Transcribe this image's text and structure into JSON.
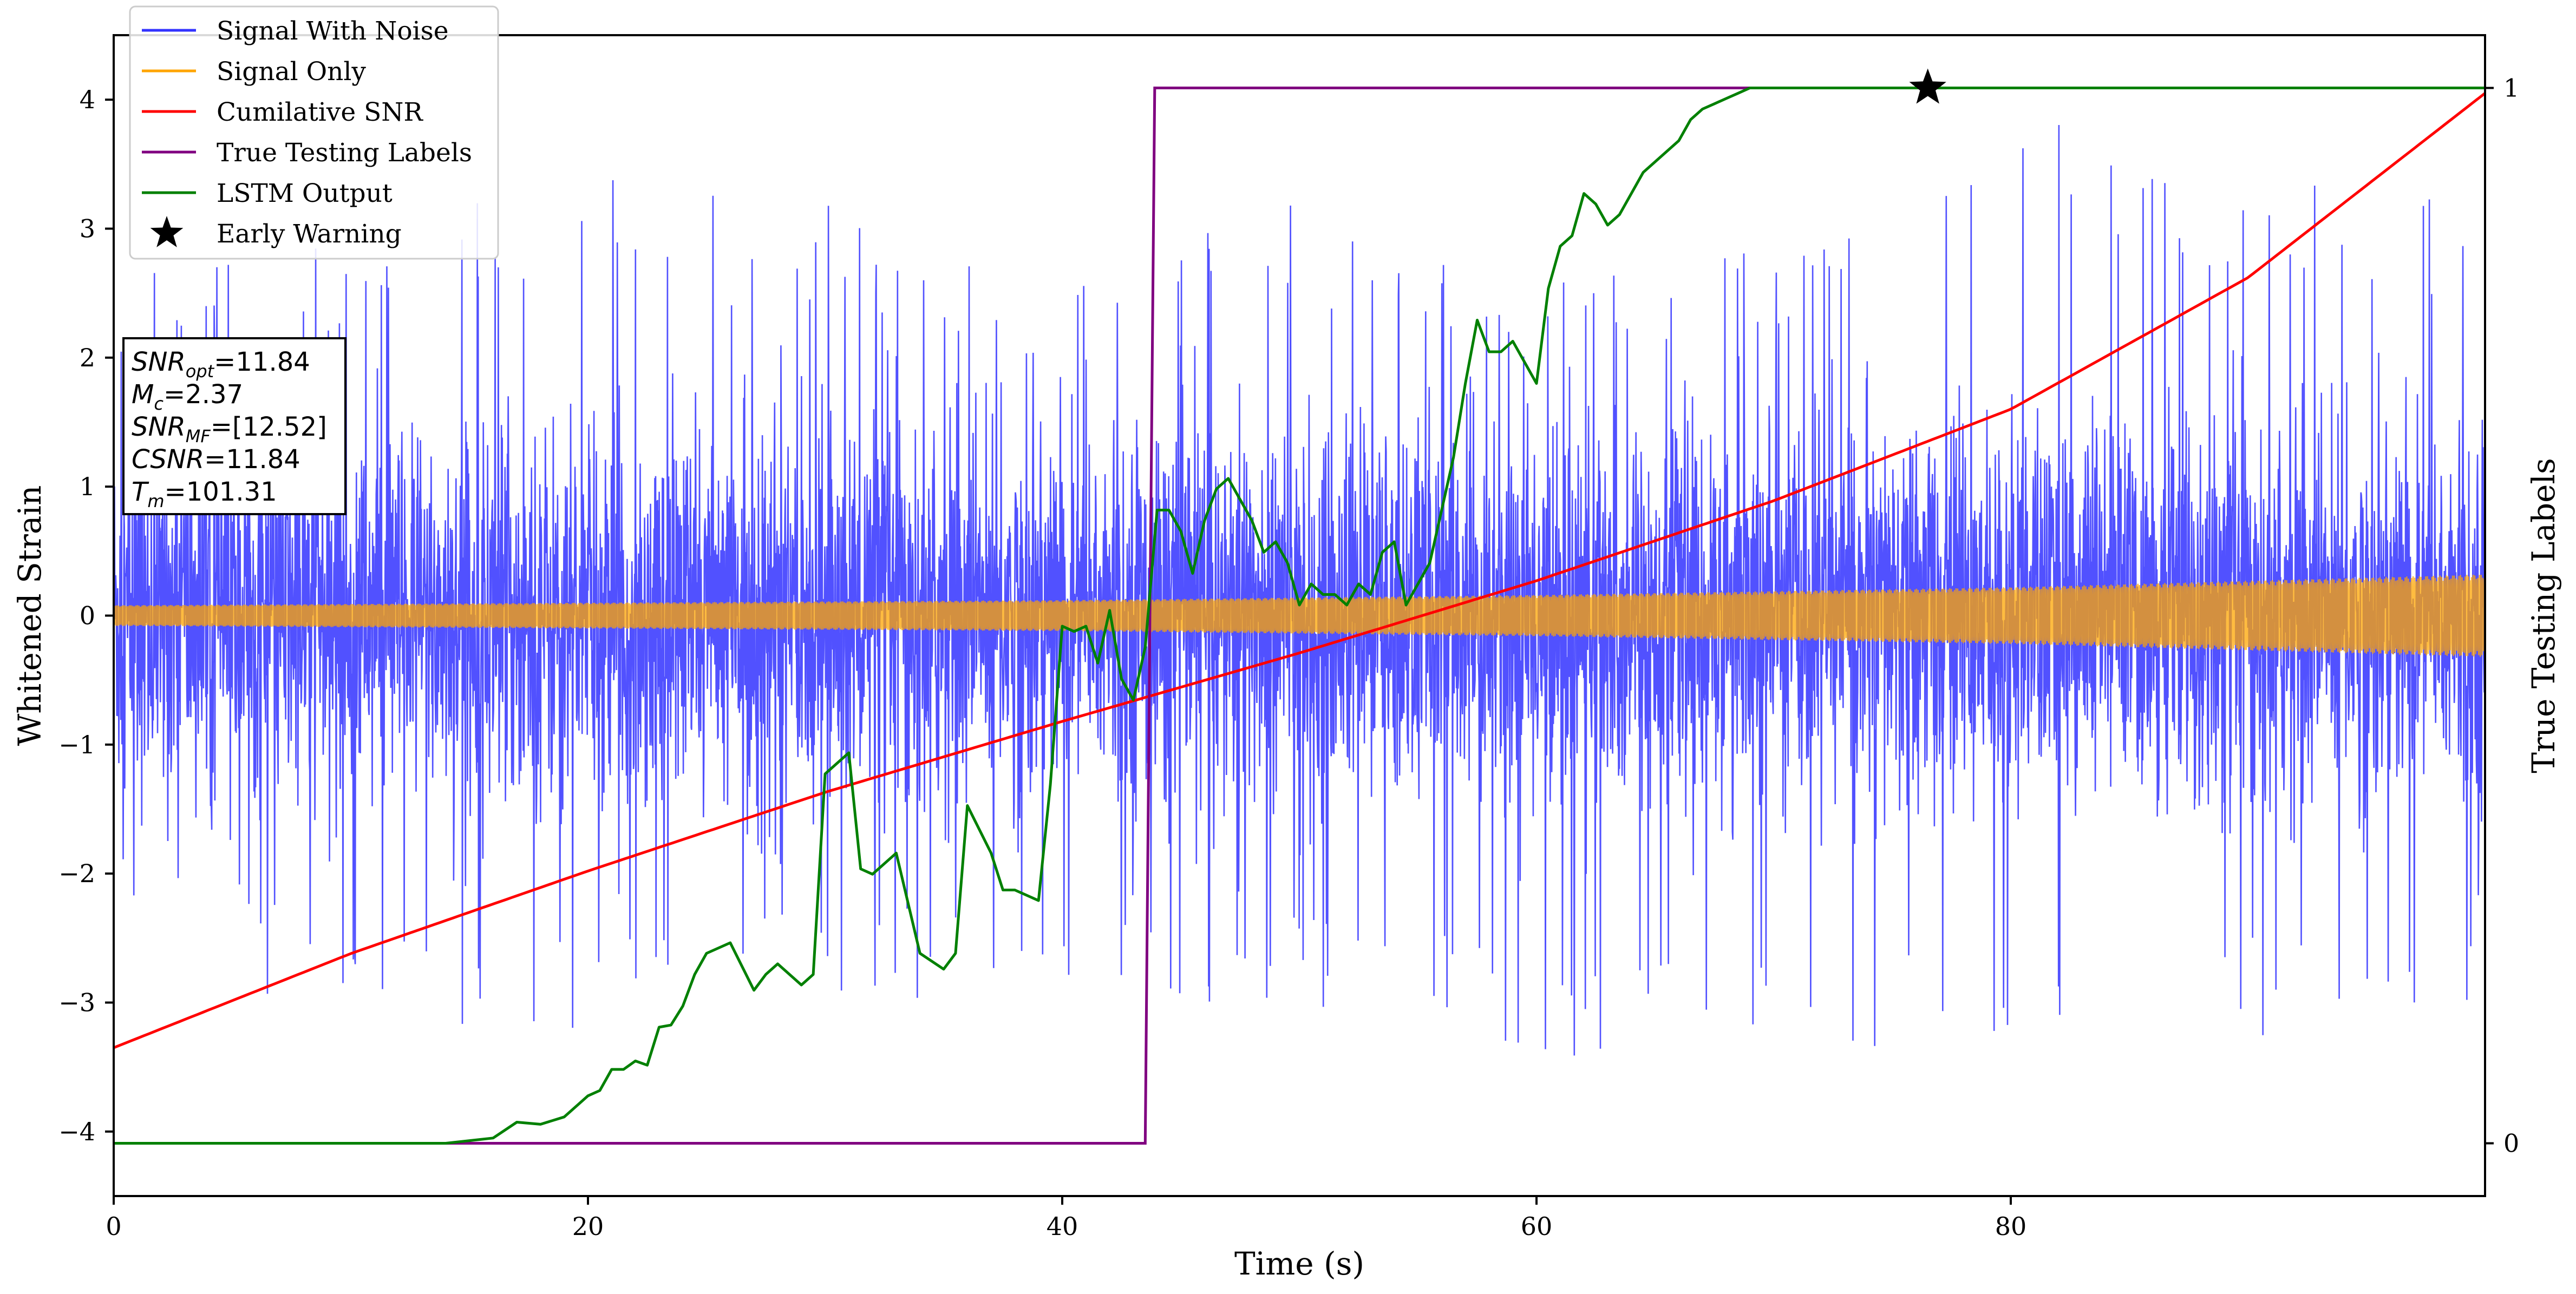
{
  "chart_data": {
    "type": "line",
    "xlabel": "Time (s)",
    "ylabel": "Whitened Strain",
    "y2label": "True Testing Labels",
    "xlim": [
      0,
      100
    ],
    "ylim": [
      -4.5,
      4.5
    ],
    "y2lim": [
      -0.05,
      1.05
    ],
    "xticks": [
      0,
      20,
      40,
      60,
      80
    ],
    "yticks": [
      -4,
      -3,
      -2,
      -1,
      0,
      1,
      2,
      3,
      4
    ],
    "y2ticks": [
      0,
      1
    ],
    "legend_location": "upper-left",
    "series": [
      {
        "name": "Signal With Noise",
        "color": "#3333ff",
        "axis": "left",
        "style": "dense-noise",
        "envelope_x": [
          0,
          10,
          20,
          30,
          40,
          50,
          60,
          70,
          80,
          90,
          100
        ],
        "envelope_max": [
          2.6,
          3.0,
          3.4,
          3.2,
          2.5,
          3.5,
          2.7,
          3.0,
          4.0,
          3.5,
          3.2
        ],
        "envelope_min": [
          -2.5,
          -3.2,
          -3.2,
          -3.0,
          -3.0,
          -3.0,
          -3.5,
          -3.3,
          -3.4,
          -3.3,
          -3.2
        ]
      },
      {
        "name": "Signal Only",
        "color": "#ffa500",
        "axis": "left",
        "style": "growing-oscillation",
        "amplitude_x": [
          0,
          20,
          40,
          60,
          80,
          100
        ],
        "amplitude": [
          0.08,
          0.1,
          0.12,
          0.16,
          0.22,
          0.32
        ]
      },
      {
        "name": "Cumilative SNR",
        "color": "#ff0000",
        "axis": "left",
        "x": [
          0,
          10,
          20,
          30,
          40,
          50,
          60,
          70,
          80,
          90,
          100
        ],
        "y": [
          -3.35,
          -2.62,
          -1.98,
          -1.37,
          -0.82,
          -0.29,
          0.27,
          0.89,
          1.6,
          2.62,
          4.05
        ]
      },
      {
        "name": "True Testing Labels",
        "color": "#800080",
        "axis": "right",
        "x": [
          0,
          43.5,
          43.9,
          100
        ],
        "y": [
          0,
          0,
          1,
          1
        ]
      },
      {
        "name": "LSTM Output",
        "color": "#008000",
        "axis": "right",
        "x": [
          0,
          5,
          10,
          14,
          16,
          17,
          18,
          19,
          20,
          20.5,
          21,
          21.5,
          22,
          22.5,
          23,
          23.5,
          24,
          24.5,
          25,
          26,
          27,
          27.5,
          28,
          29,
          29.5,
          30,
          31,
          31.5,
          32,
          33,
          34,
          35,
          35.5,
          36,
          37,
          37.5,
          38,
          39,
          39.5,
          40,
          40.5,
          41,
          41.5,
          42,
          42.5,
          43,
          43.5,
          44,
          44.5,
          45,
          45.5,
          46,
          46.5,
          47,
          47.5,
          48,
          48.5,
          49,
          49.5,
          50,
          50.5,
          51,
          51.5,
          52,
          52.5,
          53,
          53.5,
          54,
          54.5,
          55,
          55.5,
          56,
          56.5,
          57,
          57.5,
          58,
          58.5,
          59,
          59.5,
          60,
          60.5,
          61,
          61.5,
          62,
          62.5,
          63,
          63.5,
          64,
          64.5,
          65,
          65.5,
          66,
          66.5,
          67,
          67.5,
          68,
          68.5,
          69,
          70,
          71,
          72,
          73,
          74,
          75,
          76.5,
          78,
          80,
          85,
          90,
          95,
          100
        ],
        "y": [
          0,
          0,
          0,
          0,
          0.005,
          0.02,
          0.018,
          0.025,
          0.045,
          0.05,
          0.07,
          0.07,
          0.078,
          0.074,
          0.11,
          0.112,
          0.13,
          0.16,
          0.18,
          0.19,
          0.145,
          0.16,
          0.17,
          0.15,
          0.16,
          0.35,
          0.37,
          0.26,
          0.255,
          0.275,
          0.18,
          0.165,
          0.18,
          0.32,
          0.275,
          0.24,
          0.24,
          0.23,
          0.34,
          0.49,
          0.485,
          0.49,
          0.455,
          0.505,
          0.44,
          0.42,
          0.47,
          0.6,
          0.6,
          0.58,
          0.54,
          0.59,
          0.62,
          0.63,
          0.61,
          0.59,
          0.56,
          0.57,
          0.55,
          0.51,
          0.53,
          0.52,
          0.52,
          0.51,
          0.53,
          0.52,
          0.56,
          0.57,
          0.51,
          0.53,
          0.55,
          0.6,
          0.65,
          0.72,
          0.78,
          0.75,
          0.75,
          0.76,
          0.74,
          0.72,
          0.81,
          0.85,
          0.86,
          0.9,
          0.89,
          0.87,
          0.88,
          0.9,
          0.92,
          0.93,
          0.94,
          0.95,
          0.97,
          0.98,
          0.985,
          0.99,
          0.995,
          1.0,
          1.0,
          1.0,
          1.0,
          1.0,
          1.0,
          1.0,
          1.0,
          1.0,
          1.0,
          1.0,
          1.0,
          1.0,
          1.0
        ]
      },
      {
        "name": "Early Warning",
        "color": "#000000",
        "axis": "right",
        "marker": "star",
        "x": [
          76.5
        ],
        "y": [
          1.0
        ]
      }
    ],
    "annotation": [
      "SNR",
      "opt",
      "=11.84",
      "M",
      "c",
      "=2.37",
      "SNR",
      "MF",
      "=[12.52]",
      "CSNR",
      "=11.84",
      "T",
      "m",
      "=101.31"
    ]
  }
}
